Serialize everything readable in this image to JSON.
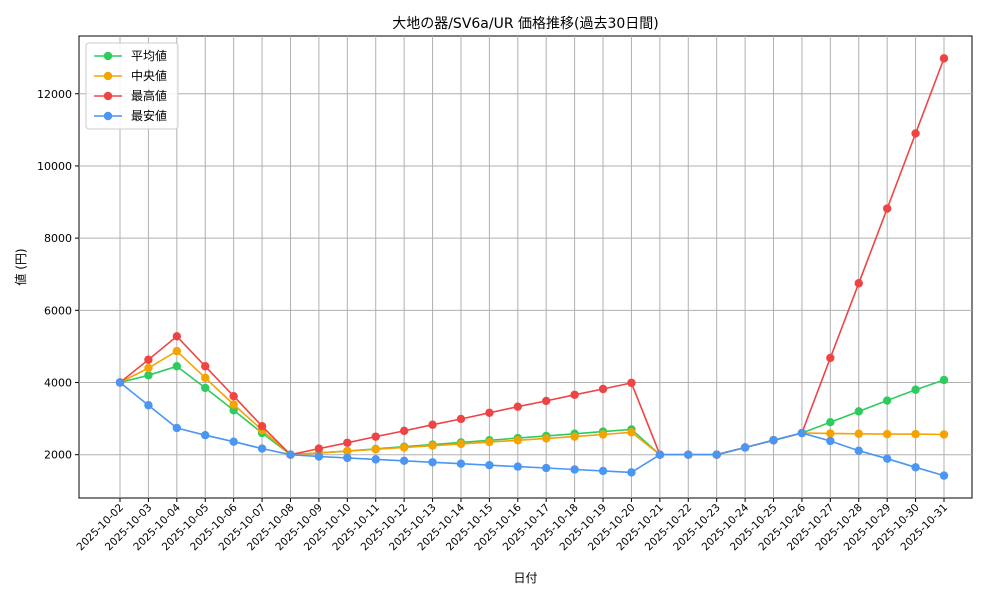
{
  "chart_data": {
    "type": "line",
    "title": "大地の器/SV6a/UR 価格推移(過去30日間)",
    "xlabel": "日付",
    "ylabel": "値 (円)",
    "ylim": [
      800,
      13600
    ],
    "yticks": [
      2000,
      4000,
      6000,
      8000,
      10000,
      12000
    ],
    "ytick_labels": [
      "2000",
      "4000",
      "6000",
      "8000",
      "10000",
      "12000"
    ],
    "grid": true,
    "legend_position": "top-left",
    "categories": [
      "2025-10-02",
      "2025-10-03",
      "2025-10-04",
      "2025-10-05",
      "2025-10-06",
      "2025-10-07",
      "2025-10-08",
      "2025-10-09",
      "2025-10-10",
      "2025-10-11",
      "2025-10-12",
      "2025-10-13",
      "2025-10-14",
      "2025-10-15",
      "2025-10-16",
      "2025-10-17",
      "2025-10-18",
      "2025-10-19",
      "2025-10-20",
      "2025-10-21",
      "2025-10-22",
      "2025-10-23",
      "2025-10-24",
      "2025-10-25",
      "2025-10-26",
      "2025-10-27",
      "2025-10-28",
      "2025-10-29",
      "2025-10-30",
      "2025-10-31"
    ],
    "series": [
      {
        "name": "平均値",
        "color": "#2ecc5f",
        "values": [
          4000,
          4200,
          4450,
          3850,
          3230,
          2600,
          2000,
          2050,
          2100,
          2160,
          2220,
          2280,
          2340,
          2400,
          2460,
          2520,
          2580,
          2640,
          2700,
          2000,
          2000,
          2000,
          2200,
          2400,
          2600,
          2900,
          3200,
          3500,
          3800,
          4070
        ]
      },
      {
        "name": "中央値",
        "color": "#f5a300",
        "values": [
          4000,
          4400,
          4870,
          4130,
          3390,
          2680,
          2000,
          2050,
          2100,
          2150,
          2200,
          2250,
          2300,
          2350,
          2400,
          2450,
          2500,
          2560,
          2620,
          2000,
          2000,
          2000,
          2200,
          2400,
          2600,
          2590,
          2580,
          2570,
          2570,
          2560
        ]
      },
      {
        "name": "最高値",
        "color": "#ef4444",
        "values": [
          4000,
          4630,
          5280,
          4450,
          3620,
          2790,
          2000,
          2170,
          2330,
          2500,
          2660,
          2830,
          2990,
          3160,
          3330,
          3490,
          3660,
          3820,
          3990,
          2000,
          2000,
          2000,
          2200,
          2400,
          2600,
          4680,
          6750,
          8820,
          10900,
          12980
        ]
      },
      {
        "name": "最安値",
        "color": "#4b96f3",
        "values": [
          4000,
          3370,
          2740,
          2540,
          2360,
          2170,
          2000,
          1950,
          1910,
          1870,
          1830,
          1790,
          1750,
          1710,
          1670,
          1630,
          1590,
          1550,
          1510,
          2000,
          2000,
          2000,
          2200,
          2400,
          2600,
          2380,
          2110,
          1890,
          1650,
          1420
        ]
      }
    ]
  }
}
